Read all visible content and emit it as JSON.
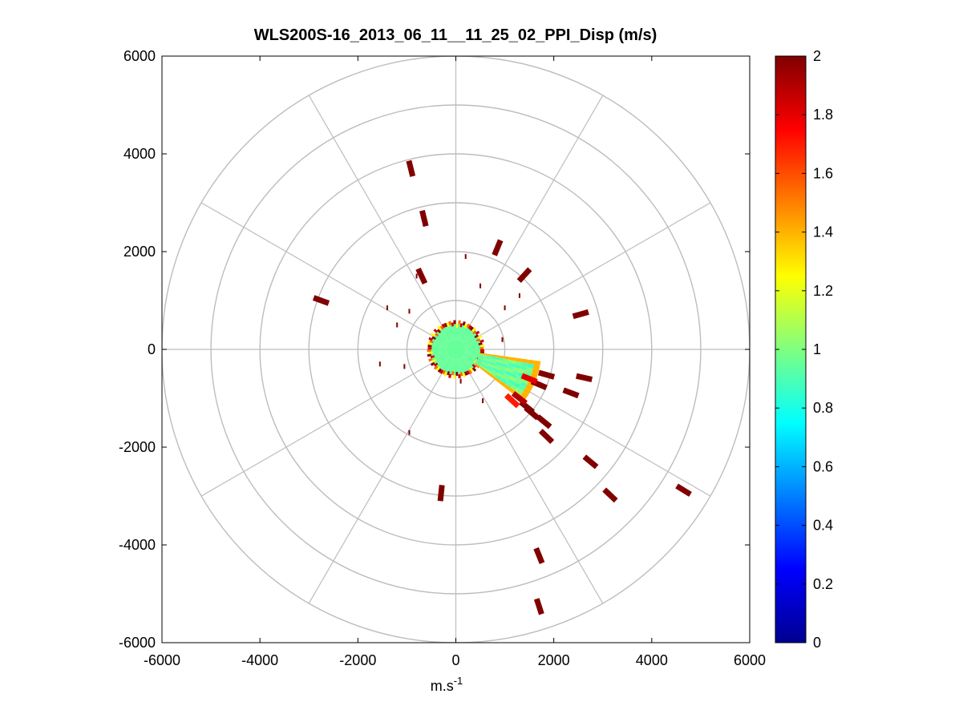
{
  "chart_data": {
    "type": "heatmap",
    "subtype": "polar-ppi",
    "title": "WLS200S-16_2013_06_11__11_25_02_PPI_Disp (m/s)",
    "xlabel_base": "m.s",
    "xlabel_sup": "-1",
    "ylabel": "",
    "xlim": [
      -6000,
      6000
    ],
    "ylim": [
      -6000,
      6000
    ],
    "xticks": [
      -6000,
      -4000,
      -2000,
      0,
      2000,
      4000,
      6000
    ],
    "yticks": [
      -6000,
      -4000,
      -2000,
      0,
      2000,
      4000,
      6000
    ],
    "xtick_labels": [
      "-6000",
      "-4000",
      "-2000",
      "0",
      "2000",
      "4000",
      "6000"
    ],
    "ytick_labels": [
      "6000",
      "4000",
      "2000",
      "0",
      "-2000",
      "-4000",
      "-6000"
    ],
    "polar_grid": {
      "rings_m": [
        1000,
        2000,
        3000,
        4000,
        5000,
        6000
      ],
      "spokes_deg": [
        0,
        30,
        60,
        90,
        120,
        150,
        180,
        210,
        240,
        270,
        300,
        330
      ]
    },
    "colorbar": {
      "min": 0,
      "max": 2,
      "ticks": [
        0,
        0.2,
        0.4,
        0.6,
        0.8,
        1,
        1.2,
        1.4,
        1.6,
        1.8,
        2
      ],
      "tick_labels": [
        "0",
        "0.2",
        "0.4",
        "0.6",
        "0.8",
        "1",
        "1.2",
        "1.4",
        "1.6",
        "1.8",
        "2"
      ],
      "colormap": "jet"
    },
    "near_field": {
      "inner_radius_m": 200,
      "outer_radius_m": 520,
      "core_value": 0.95,
      "edge_values": [
        1.25,
        1.55,
        1.85,
        2.0
      ]
    },
    "plume_sector": {
      "az_from_deg": 98,
      "az_to_deg": 128,
      "r_from_m": 480,
      "r_to_m": 1750,
      "core_value": 0.95,
      "edge_value": 1.4
    },
    "cells": [
      {
        "x": -920,
        "y": 3700,
        "v": 2.0
      },
      {
        "x": -650,
        "y": 2680,
        "v": 2.0
      },
      {
        "x": 850,
        "y": 2080,
        "v": 2.0
      },
      {
        "x": 1400,
        "y": 1520,
        "v": 2.0
      },
      {
        "x": -2750,
        "y": 1000,
        "v": 2.0
      },
      {
        "x": 2550,
        "y": 720,
        "v": 2.0
      },
      {
        "x": -700,
        "y": 1500,
        "v": 2.0
      },
      {
        "x": 2620,
        "y": -580,
        "v": 2.0
      },
      {
        "x": 2350,
        "y": -890,
        "v": 2.0
      },
      {
        "x": 1850,
        "y": -520,
        "v": 2.0
      },
      {
        "x": 1700,
        "y": -720,
        "v": 2.0
      },
      {
        "x": 1550,
        "y": -1300,
        "v": 2.0
      },
      {
        "x": 1800,
        "y": -1480,
        "v": 2.0
      },
      {
        "x": 1450,
        "y": -1180,
        "v": 2.0
      },
      {
        "x": 1850,
        "y": -1780,
        "v": 2.0
      },
      {
        "x": 2750,
        "y": -2300,
        "v": 2.0
      },
      {
        "x": 3150,
        "y": -2980,
        "v": 2.0
      },
      {
        "x": 4650,
        "y": -2880,
        "v": 2.0
      },
      {
        "x": -300,
        "y": -2940,
        "v": 2.0
      },
      {
        "x": 1700,
        "y": -4220,
        "v": 2.0
      },
      {
        "x": 1700,
        "y": -5260,
        "v": 2.0
      },
      {
        "x": 1300,
        "y": -1000,
        "v": 1.9
      },
      {
        "x": 1150,
        "y": -1050,
        "v": 1.7
      },
      {
        "x": 1500,
        "y": -600,
        "v": 1.8
      }
    ],
    "specks": [
      {
        "x": 200,
        "y": 1900
      },
      {
        "x": -800,
        "y": 1500
      },
      {
        "x": 1300,
        "y": 1100
      },
      {
        "x": 500,
        "y": 1300
      },
      {
        "x": -1400,
        "y": 850
      },
      {
        "x": -950,
        "y": 780
      },
      {
        "x": -1200,
        "y": 500
      },
      {
        "x": 1000,
        "y": 850
      },
      {
        "x": 950,
        "y": 200
      },
      {
        "x": -1550,
        "y": -300
      },
      {
        "x": -1050,
        "y": -350
      },
      {
        "x": 100,
        "y": -650
      },
      {
        "x": 550,
        "y": -1050
      },
      {
        "x": -950,
        "y": -1700
      }
    ]
  }
}
